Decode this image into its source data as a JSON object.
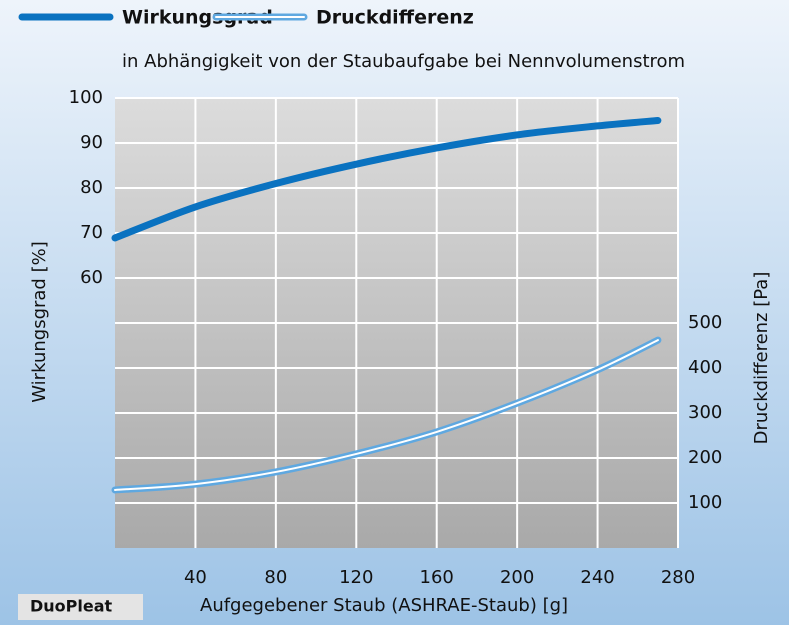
{
  "chart_data": {
    "type": "line",
    "subtitle": "in Abhängigkeit von der Staubaufgabe bei Nennvolumenstrom",
    "xlabel": "Aufgegebener Staub (ASHRAE-Staub) [g]",
    "ylabel": "Wirkungsgrad [%]",
    "y2label": "Druckdifferenz [Pa]",
    "annotation": "DuoPleat",
    "x": [
      0,
      40,
      80,
      120,
      160,
      200,
      240,
      270
    ],
    "series": [
      {
        "name": "Wirkungsgrad",
        "color": "#0a72c0",
        "values": [
          68.9,
          75.8,
          81,
          85.3,
          88.9,
          91.8,
          93.8,
          95
        ]
      },
      {
        "name": "Druckdifferenz",
        "color": "#5fa8e0",
        "axis": "y2",
        "values": [
          129,
          142,
          169,
          209,
          258,
          322,
          396,
          462
        ]
      }
    ],
    "xlim": [
      0,
      280
    ],
    "xticks": [
      40,
      80,
      120,
      160,
      200,
      240,
      280
    ],
    "ylim": [
      0,
      100
    ],
    "yticks": [
      60,
      70,
      80,
      90,
      100
    ],
    "y2lim": [
      0,
      1000
    ],
    "y2ticks": [
      100,
      200,
      300,
      400,
      500
    ],
    "grid": true
  }
}
